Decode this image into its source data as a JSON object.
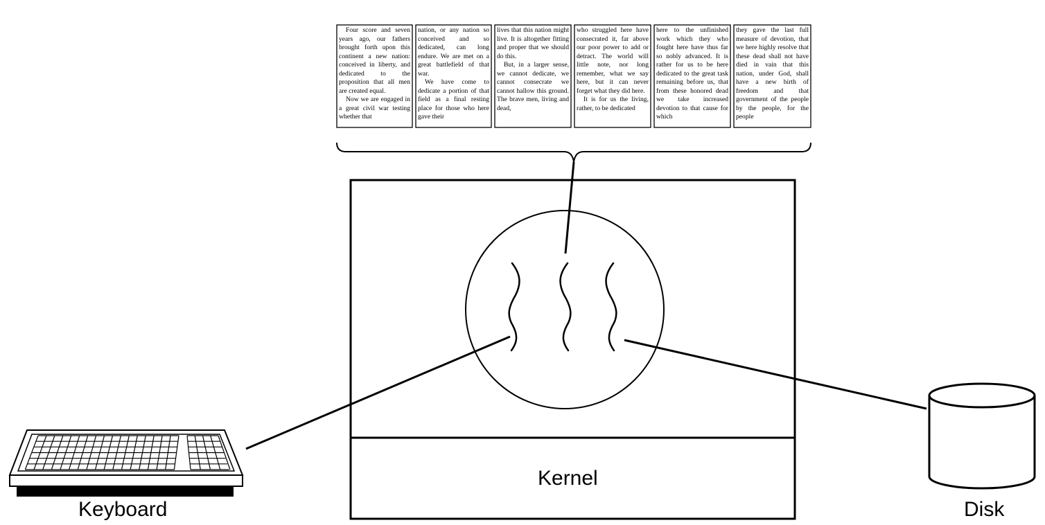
{
  "labels": {
    "kernel": "Kernel",
    "keyboard": "Keyboard",
    "disk": "Disk"
  },
  "pages": [
    {
      "paragraphs": [
        "Four score and seven years ago, our fathers brought forth upon this continent a new nation: conceived in liberty, and dedicated to the proposition that all men are created equal.",
        "Now we are engaged in a great civil war testing whether that"
      ],
      "first_is_continuation": false
    },
    {
      "paragraphs": [
        "nation, or any nation so conceived and so dedicated, can long endure. We are met on a great battlefield of that war.",
        "We have come to dedicate a portion of that field as a final resting place for those who here gave their"
      ],
      "first_is_continuation": true
    },
    {
      "paragraphs": [
        "lives that this nation might live. It is altogether fitting and proper that we should do this.",
        "But, in a larger sense, we cannot dedicate, we cannot consecrate we cannot hallow this ground. The brave men, living and dead,"
      ],
      "first_is_continuation": true
    },
    {
      "paragraphs": [
        "who struggled here have consecrated it, far above our poor power to add or detract. The world will little note, nor long remember, what we say here, but it can never forget what they did here.",
        "It is for us the living, rather, to be dedicated"
      ],
      "first_is_continuation": true
    },
    {
      "paragraphs": [
        "here to the unfinished work which they who fought here have thus far so nobly advanced. It is rather for us to be here dedicated to the great task remaining before us, that from these honored dead we take increased devotion to that cause for which"
      ],
      "first_is_continuation": true
    },
    {
      "paragraphs": [
        "they gave the last full measure of devotion, that we here highly resolve that these dead shall not have died in vain that this nation, under God, shall have a new birth of freedom and that government of the people by the people, for the people"
      ],
      "first_is_continuation": true
    }
  ]
}
